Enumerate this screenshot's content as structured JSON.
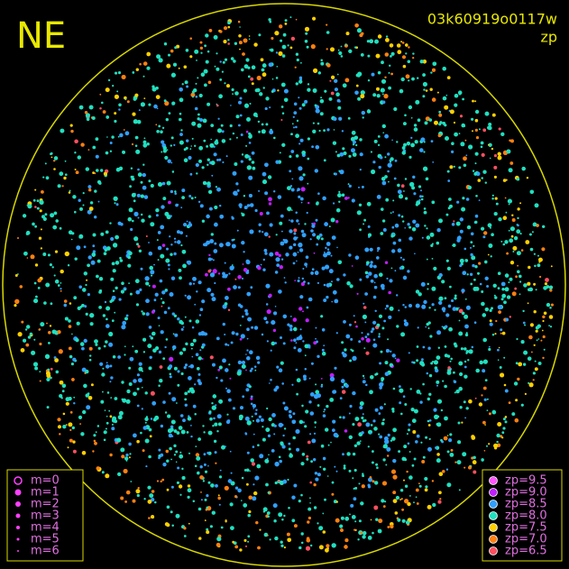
{
  "header": {
    "title": "NE",
    "image_id": "03k60919o0117w",
    "color_key": "zp"
  },
  "magnitude_legend": {
    "items": [
      "m=0",
      "m=1",
      "m=2",
      "m=3",
      "m=4",
      "m=5",
      "m=6"
    ]
  },
  "zp_legend": {
    "items": [
      {
        "label": "zp=9.5",
        "color": "#ff55ff"
      },
      {
        "label": "zp=9.0",
        "color": "#c020ff"
      },
      {
        "label": "zp=8.5",
        "color": "#30a0ff"
      },
      {
        "label": "zp=8.0",
        "color": "#20e0c0"
      },
      {
        "label": "zp=7.5",
        "color": "#ffd000"
      },
      {
        "label": "zp=7.0",
        "color": "#ff8010"
      },
      {
        "label": "zp=6.5",
        "color": "#ff5060"
      }
    ]
  }
}
